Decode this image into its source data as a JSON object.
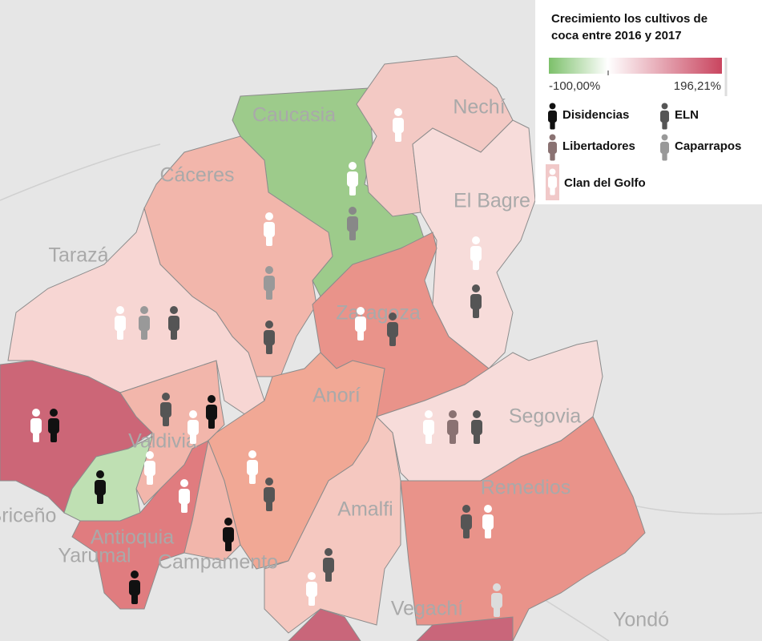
{
  "legend": {
    "title_lines": [
      "Crecimiento los cultivos de",
      "coca entre 2016 y 2017"
    ],
    "min_label": "-100,00%",
    "max_label": "196,21%",
    "groups": [
      "Disidencias",
      "ELN",
      "Libertadores",
      "Caparrapos",
      "Clan del Golfo"
    ]
  },
  "places": [
    "Caucasia",
    "Nechí",
    "Cáceres",
    "El Bagre",
    "Tarazá",
    "Zaragoza",
    "Anorí",
    "Segovia",
    "Valdivia",
    "Remedios",
    "Amalfi",
    "Briceño",
    "Antioquia",
    "Yarumal",
    "Campamento",
    "Vegachí",
    "Yondó"
  ]
}
